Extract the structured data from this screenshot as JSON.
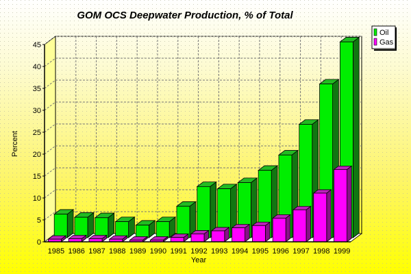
{
  "chart_data": {
    "type": "bar",
    "title": "GOM OCS Deepwater Production, % of Total",
    "xlabel": "Year",
    "ylabel": "Percent",
    "ylim": [
      0,
      45
    ],
    "yticks": [
      "0",
      "5",
      "10",
      "15",
      "20",
      "25",
      "30",
      "35",
      "40",
      "45"
    ],
    "grid": true,
    "legend_position": "top-right",
    "categories": [
      "1985",
      "1986",
      "1987",
      "1988",
      "1989",
      "1990",
      "1991",
      "1992",
      "1993",
      "1994",
      "1995",
      "1996",
      "1997",
      "1998",
      "1999"
    ],
    "series": [
      {
        "name": "Oil",
        "color": "#00ee00",
        "values": [
          6.3,
          5.6,
          5.5,
          4.6,
          3.8,
          4.6,
          8.1,
          12.6,
          12.1,
          13.5,
          16.3,
          19.8,
          26.8,
          36.0,
          45.6
        ]
      },
      {
        "name": "Gas",
        "color": "#ff00ff",
        "values": [
          0.6,
          0.7,
          0.7,
          0.6,
          0.4,
          0.4,
          1.0,
          1.8,
          2.5,
          3.2,
          3.7,
          5.4,
          7.3,
          11.1,
          16.5
        ]
      }
    ]
  }
}
